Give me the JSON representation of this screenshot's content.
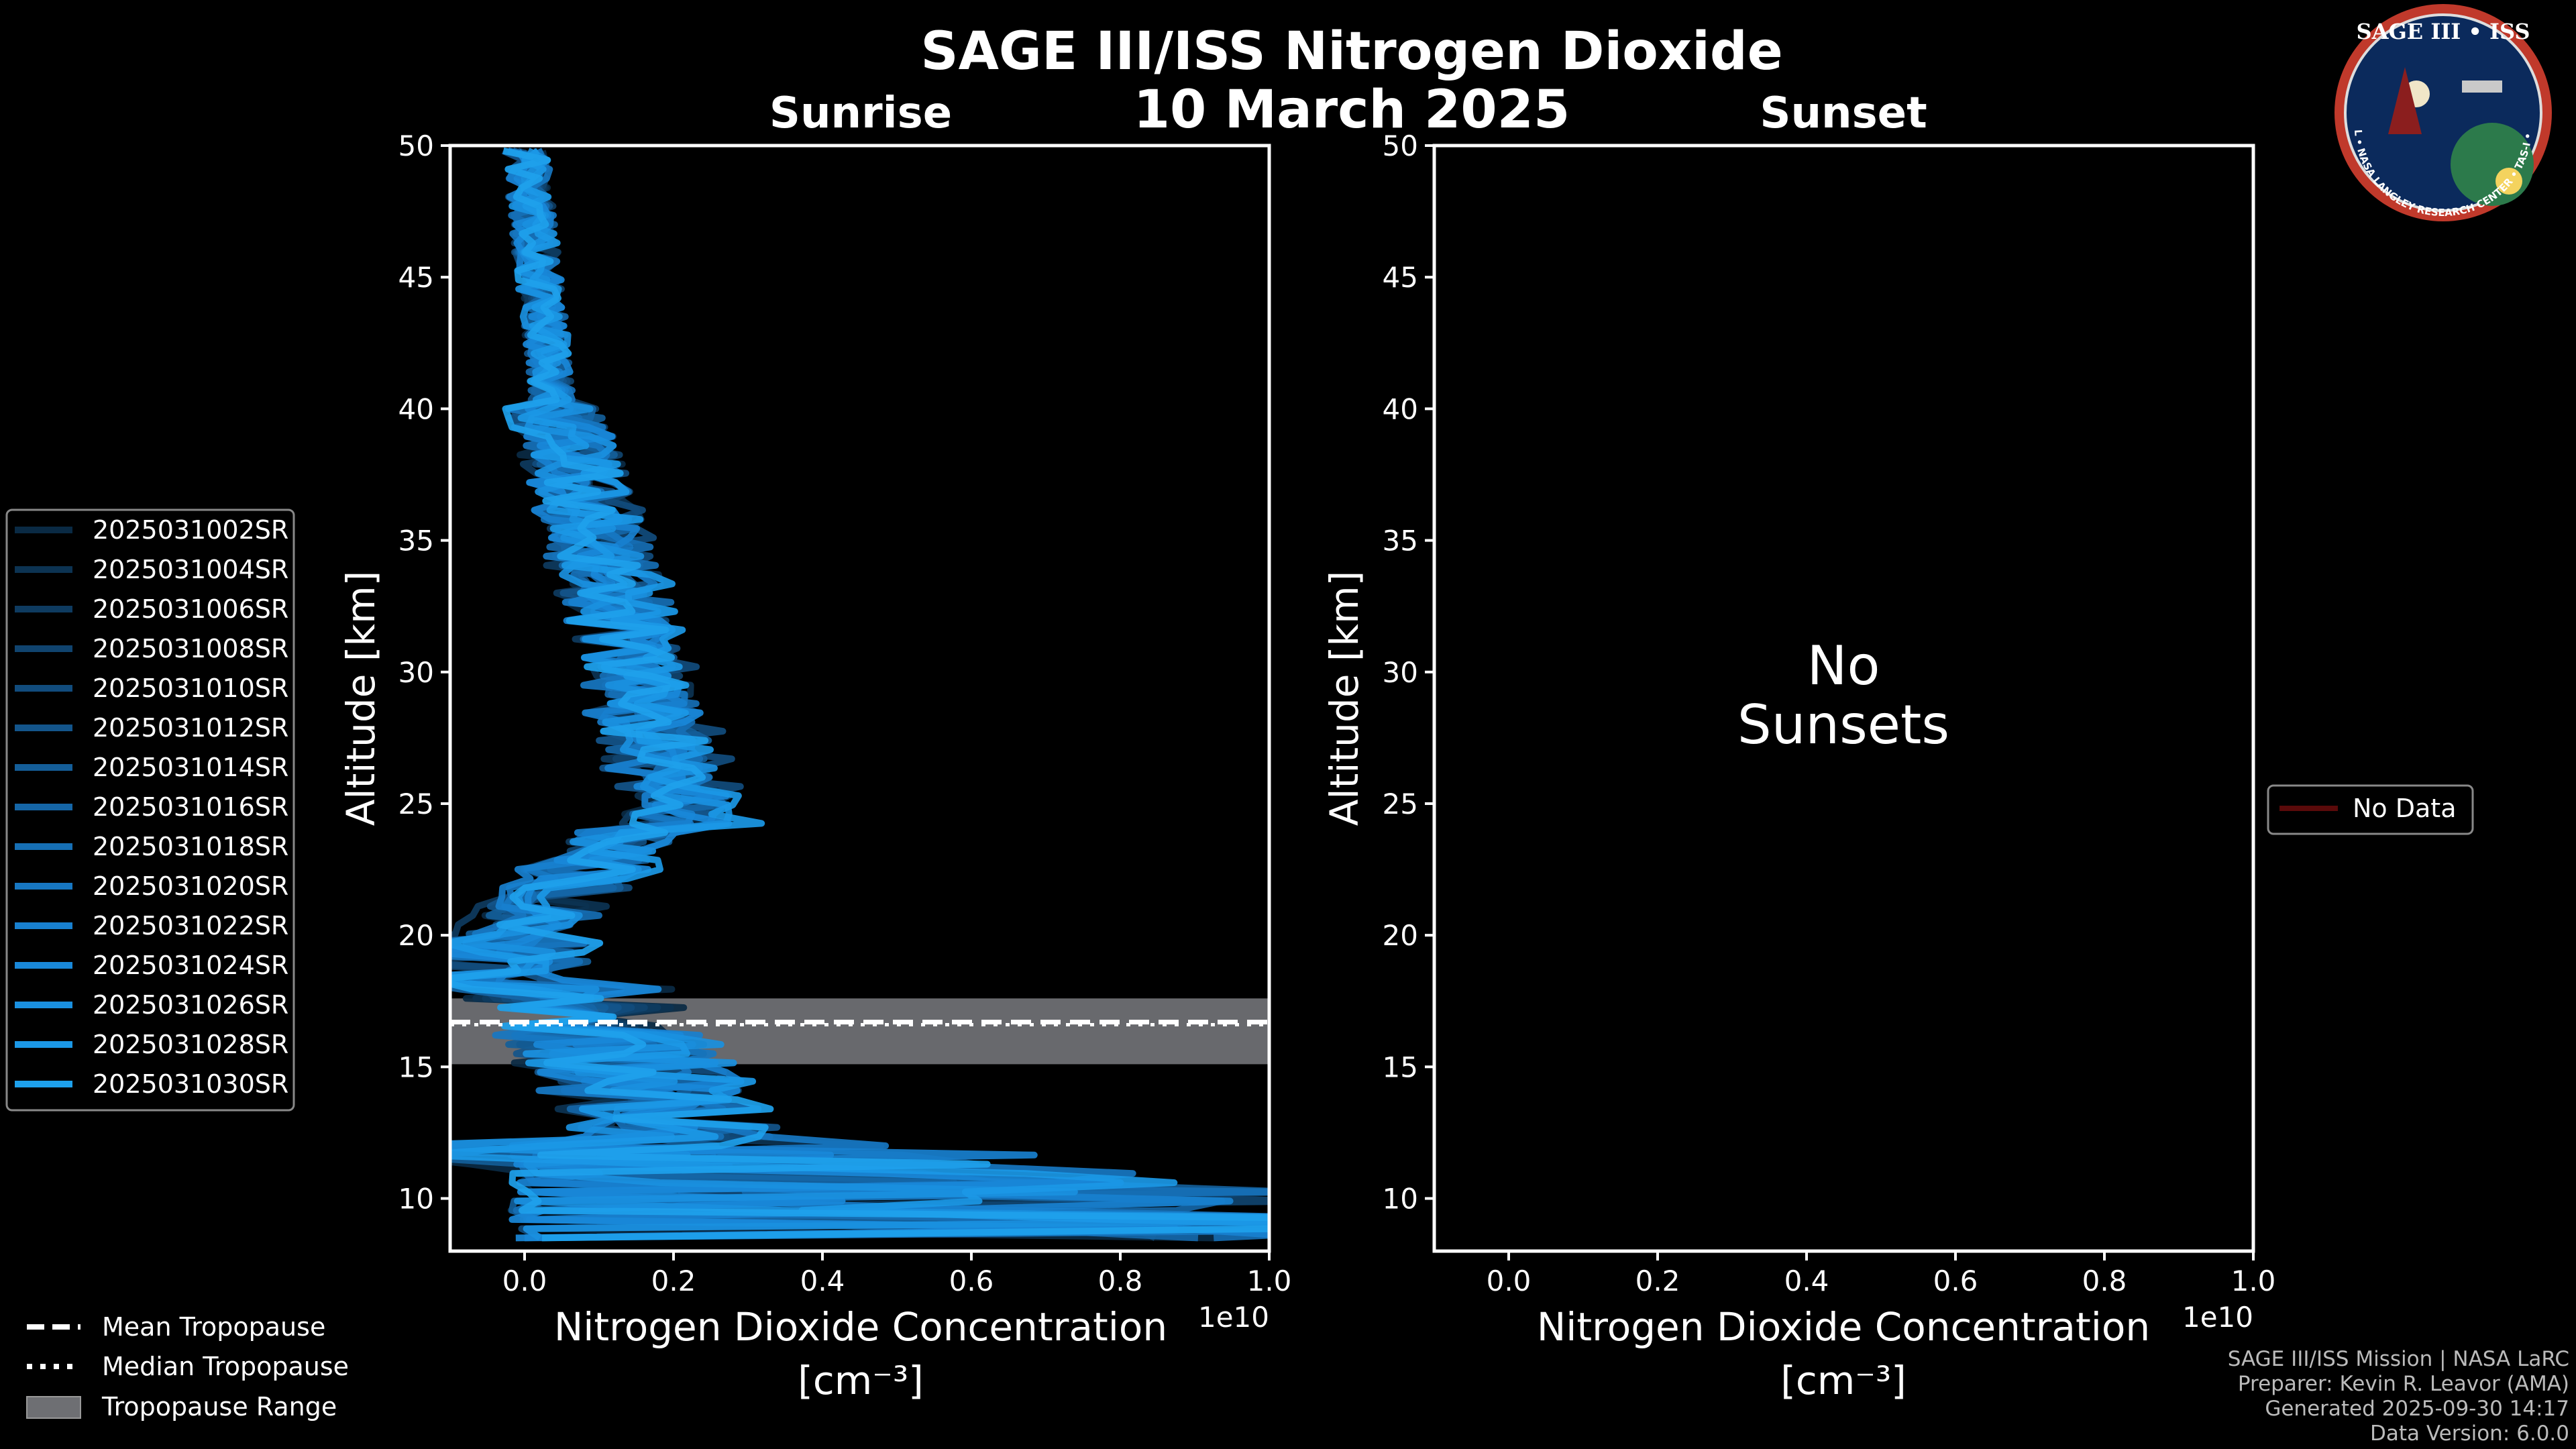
{
  "chart_data": {
    "type": "line",
    "title": "SAGE III/ISS Nitrogen Dioxide",
    "date": "10 March 2025",
    "panels": [
      {
        "subtitle": "Sunrise",
        "xlabel_line1": "Nitrogen Dioxide Concentration",
        "xlabel_line2": "[cm⁻³]",
        "ylabel": "Altitude [km]",
        "x_multiplier": "1e10",
        "xlim": [
          -0.1,
          1.0
        ],
        "ylim": [
          8,
          50
        ],
        "xticks": [
          0.0,
          0.2,
          0.4,
          0.6,
          0.8,
          1.0
        ],
        "xtick_labels": [
          "0.0",
          "0.2",
          "0.4",
          "0.6",
          "0.8",
          "1.0"
        ],
        "yticks": [
          10,
          15,
          20,
          25,
          30,
          35,
          40,
          45,
          50
        ],
        "tropopause": {
          "mean": 16.7,
          "median": 16.6,
          "range": [
            15.1,
            17.6
          ]
        },
        "series": [
          {
            "name": "2025031002SR",
            "color": "#0a2a44",
            "peak_x": 0.22
          },
          {
            "name": "2025031004SR",
            "color": "#0c3352",
            "peak_x": 0.26
          },
          {
            "name": "2025031006SR",
            "color": "#0e3b60",
            "peak_x": 0.2
          },
          {
            "name": "2025031008SR",
            "color": "#10446f",
            "peak_x": 0.24
          },
          {
            "name": "2025031010SR",
            "color": "#114c7d",
            "peak_x": 0.28
          },
          {
            "name": "2025031012SR",
            "color": "#13558b",
            "peak_x": 0.21
          },
          {
            "name": "2025031014SR",
            "color": "#145e99",
            "peak_x": 0.25
          },
          {
            "name": "2025031016SR",
            "color": "#1566a7",
            "peak_x": 0.23
          },
          {
            "name": "2025031018SR",
            "color": "#166fb5",
            "peak_x": 0.27
          },
          {
            "name": "2025031020SR",
            "color": "#1777c2",
            "peak_x": 0.22
          },
          {
            "name": "2025031022SR",
            "color": "#1880cf",
            "peak_x": 0.2
          },
          {
            "name": "2025031024SR",
            "color": "#1988d9",
            "peak_x": 0.26
          },
          {
            "name": "2025031026SR",
            "color": "#1a90e0",
            "peak_x": 0.24
          },
          {
            "name": "2025031028SR",
            "color": "#1b98e6",
            "peak_x": 0.29
          },
          {
            "name": "2025031030SR",
            "color": "#1ea1ec",
            "peak_x": 0.23
          }
        ]
      },
      {
        "subtitle": "Sunset",
        "xlabel_line1": "Nitrogen Dioxide Concentration",
        "xlabel_line2": "[cm⁻³]",
        "ylabel": "Altitude [km]",
        "x_multiplier": "1e10",
        "xlim": [
          -0.1,
          1.0
        ],
        "ylim": [
          8,
          50
        ],
        "xticks": [
          0.0,
          0.2,
          0.4,
          0.6,
          0.8,
          1.0
        ],
        "xtick_labels": [
          "0.0",
          "0.2",
          "0.4",
          "0.6",
          "0.8",
          "1.0"
        ],
        "yticks": [
          10,
          15,
          20,
          25,
          30,
          35,
          40,
          45,
          50
        ],
        "no_data_line1": "No",
        "no_data_line2": "Sunsets",
        "legend": [
          {
            "name": "No Data",
            "color": "#5a0a0a"
          }
        ],
        "series": []
      }
    ]
  },
  "legend_tropopause": {
    "mean": "Mean Tropopause",
    "median": "Median Tropopause",
    "range": "Tropopause Range"
  },
  "logo": {
    "title": "SAGE III • ISS",
    "ring_text": "BALL • NASA LANGLEY RESEARCH CENTER • TAS-I • ESA"
  },
  "credits": {
    "line1": "SAGE III/ISS Mission | NASA LaRC",
    "line2": "Preparer: Kevin R. Leavor (AMA)",
    "line3": "Generated 2025-09-30 14:17",
    "line4": "Data Version: 6.0.0"
  },
  "colors": {
    "background": "#000000",
    "axis": "#ffffff",
    "tropo_band": "#6e6f73",
    "logo_ring": "#c0392b",
    "logo_bg": "#0b2a5c"
  }
}
